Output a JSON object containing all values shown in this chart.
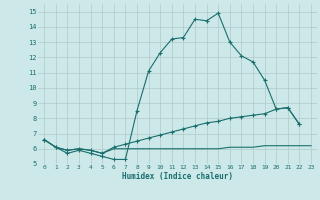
{
  "xlabel": "Humidex (Indice chaleur)",
  "bg_color": "#cce8e8",
  "grid_color": "#b0c8c8",
  "line_color": "#1a6e6e",
  "xlim": [
    -0.5,
    23.5
  ],
  "ylim": [
    5,
    15.5
  ],
  "xticks": [
    0,
    1,
    2,
    3,
    4,
    5,
    6,
    7,
    8,
    9,
    10,
    11,
    12,
    13,
    14,
    15,
    16,
    17,
    18,
    19,
    20,
    21,
    22,
    23
  ],
  "yticks": [
    5,
    6,
    7,
    8,
    9,
    10,
    11,
    12,
    13,
    14,
    15
  ],
  "line1_x": [
    0,
    1,
    2,
    3,
    4,
    5,
    6,
    7,
    8,
    9,
    10,
    11,
    12,
    13,
    14,
    15,
    16,
    17,
    18,
    19,
    20,
    21,
    22
  ],
  "line1_y": [
    6.6,
    6.1,
    5.7,
    5.9,
    5.7,
    5.5,
    5.3,
    5.3,
    8.5,
    11.1,
    12.3,
    13.2,
    13.3,
    14.5,
    14.4,
    14.9,
    13.0,
    12.1,
    11.7,
    10.5,
    8.6,
    8.7,
    7.6
  ],
  "line2_x": [
    0,
    1,
    2,
    3,
    4,
    5,
    6,
    7,
    8,
    9,
    10,
    11,
    12,
    13,
    14,
    15,
    16,
    17,
    18,
    19,
    20,
    21,
    22
  ],
  "line2_y": [
    6.6,
    6.1,
    5.9,
    6.0,
    5.9,
    5.7,
    6.1,
    6.3,
    6.5,
    6.7,
    6.9,
    7.1,
    7.3,
    7.5,
    7.7,
    7.8,
    8.0,
    8.1,
    8.2,
    8.3,
    8.6,
    8.7,
    7.6
  ],
  "line3_x": [
    0,
    1,
    2,
    3,
    4,
    5,
    6,
    7,
    8,
    9,
    10,
    11,
    12,
    13,
    14,
    15,
    16,
    17,
    18,
    19,
    20,
    21,
    22,
    23
  ],
  "line3_y": [
    6.6,
    6.1,
    5.9,
    6.0,
    5.9,
    5.7,
    6.0,
    6.0,
    6.0,
    6.0,
    6.0,
    6.0,
    6.0,
    6.0,
    6.0,
    6.0,
    6.1,
    6.1,
    6.1,
    6.2,
    6.2,
    6.2,
    6.2,
    6.2
  ]
}
